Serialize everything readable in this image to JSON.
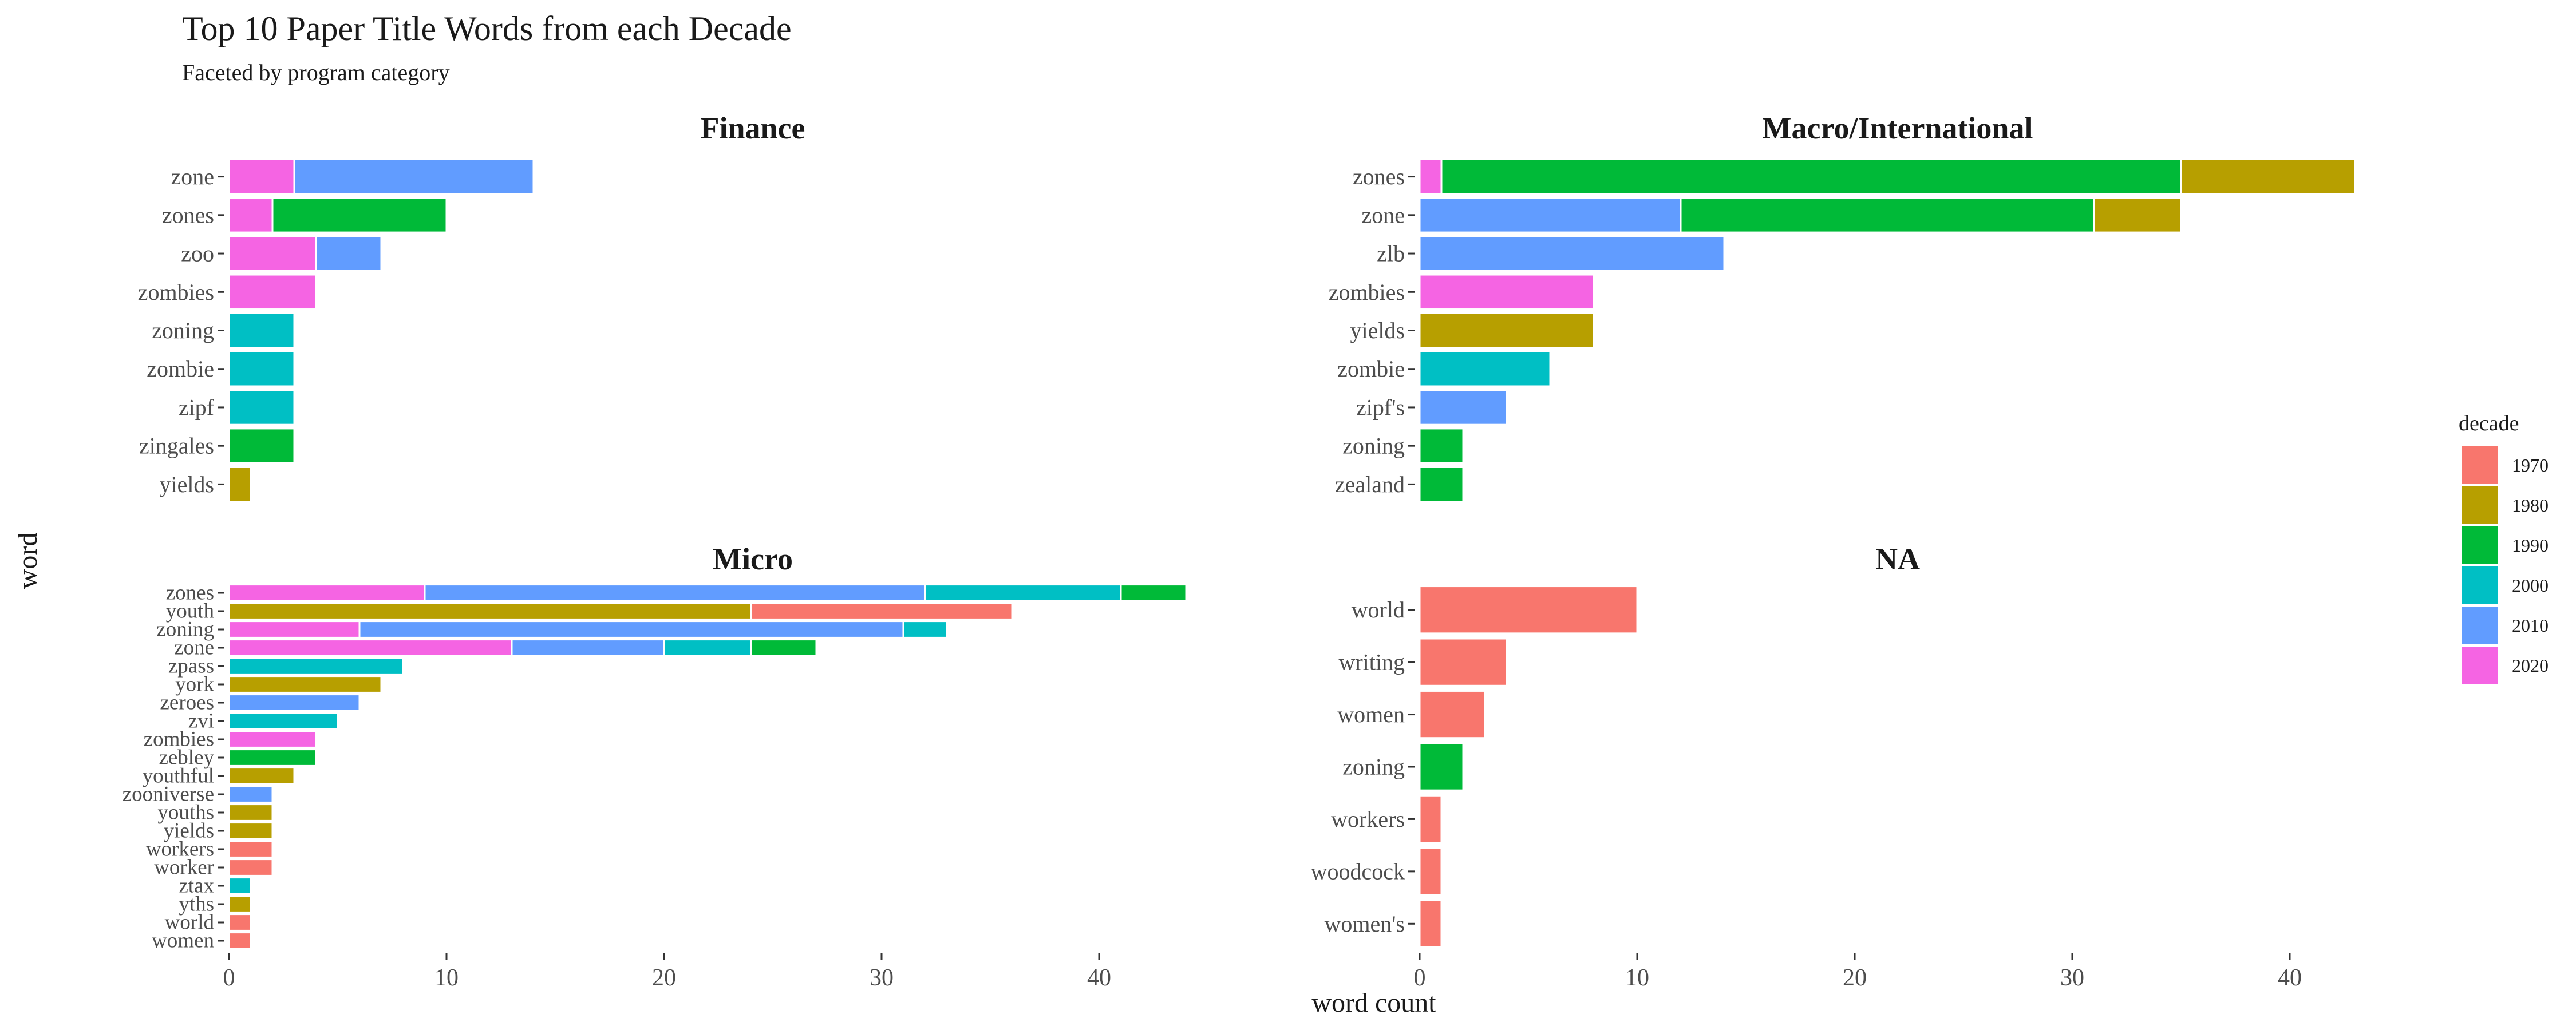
{
  "chart_data": {
    "type": "bar",
    "orientation": "horizontal",
    "stacked": true,
    "title": "Top 10 Paper Title Words from each Decade",
    "subtitle": "Faceted by program category",
    "xlabel": "word count",
    "ylabel": "word",
    "xlim": [
      0,
      45
    ],
    "xticks": [
      "0",
      "10",
      "20",
      "30",
      "40"
    ],
    "grid": false,
    "legend": {
      "title": "decade",
      "position": "right",
      "entries": [
        "1970",
        "1980",
        "1990",
        "2000",
        "2010",
        "2020"
      ]
    },
    "colors": {
      "1970": "#F8766D",
      "1980": "#B79F00",
      "1990": "#00BA38",
      "2000": "#00BFC4",
      "2010": "#619CFF",
      "2020": "#F564E3"
    },
    "stack_order": [
      "2020",
      "2010",
      "2000",
      "1990",
      "1980",
      "1970"
    ],
    "panels": [
      {
        "title": "Finance",
        "words": [
          "zone",
          "zones",
          "zoo",
          "zombies",
          "zoning",
          "zombie",
          "zipf",
          "zingales",
          "yields"
        ],
        "segments": [
          {
            "2020": 3,
            "2010": 11
          },
          {
            "2020": 2,
            "1990": 8
          },
          {
            "2020": 4,
            "2010": 3
          },
          {
            "2020": 4
          },
          {
            "2000": 3
          },
          {
            "2000": 3
          },
          {
            "2000": 3
          },
          {
            "1990": 3
          },
          {
            "1980": 1
          }
        ]
      },
      {
        "title": "Macro/International",
        "words": [
          "zones",
          "zone",
          "zlb",
          "zombies",
          "yields",
          "zombie",
          "zipf's",
          "zoning",
          "zealand"
        ],
        "segments": [
          {
            "2020": 1,
            "1990": 34,
            "1980": 8
          },
          {
            "2010": 12,
            "1990": 19,
            "1980": 4
          },
          {
            "2010": 14
          },
          {
            "2020": 8
          },
          {
            "1980": 8
          },
          {
            "2000": 6
          },
          {
            "2010": 4
          },
          {
            "1990": 2
          },
          {
            "1990": 2
          }
        ]
      },
      {
        "title": "Micro",
        "words": [
          "zones",
          "youth",
          "zoning",
          "zone",
          "zpass",
          "york",
          "zeroes",
          "zvi",
          "zombies",
          "zebley",
          "youthful",
          "zooniverse",
          "youths",
          "yields",
          "workers",
          "worker",
          "ztax",
          "yths",
          "world",
          "women"
        ],
        "segments": [
          {
            "2020": 9,
            "2010": 23,
            "2000": 9,
            "1990": 3
          },
          {
            "1980": 24,
            "1970": 12
          },
          {
            "2020": 6,
            "2010": 25,
            "2000": 2
          },
          {
            "2020": 13,
            "2010": 7,
            "2000": 4,
            "1990": 3
          },
          {
            "2000": 8
          },
          {
            "1980": 7
          },
          {
            "2010": 6
          },
          {
            "2000": 5
          },
          {
            "2020": 4
          },
          {
            "1990": 4
          },
          {
            "1980": 3
          },
          {
            "2010": 2
          },
          {
            "1980": 2
          },
          {
            "1980": 2
          },
          {
            "1970": 2
          },
          {
            "1970": 2
          },
          {
            "2000": 1
          },
          {
            "1980": 1
          },
          {
            "1970": 1
          },
          {
            "1970": 1
          }
        ]
      },
      {
        "title": "NA",
        "words": [
          "world",
          "writing",
          "women",
          "zoning",
          "workers",
          "woodcock",
          "women's"
        ],
        "segments": [
          {
            "1970": 10
          },
          {
            "1970": 4
          },
          {
            "1970": 3
          },
          {
            "1990": 2
          },
          {
            "1970": 1
          },
          {
            "1970": 1
          },
          {
            "1970": 1
          }
        ]
      }
    ]
  }
}
